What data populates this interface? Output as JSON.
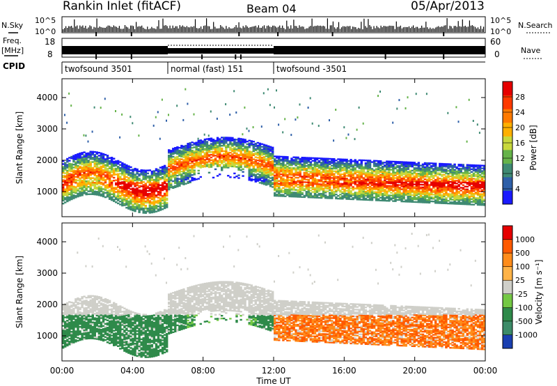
{
  "header": {
    "title": "Rankin Inlet (fitACF)",
    "beam": "Beam 04",
    "date": "05/Apr/2013"
  },
  "strips": {
    "nsky_label": "N.Sky",
    "nsearch_label": "N.Search",
    "count_ticks": [
      "10^5",
      "10^0"
    ],
    "freq_label_line1": "Freq.",
    "freq_label_line2": "[MHz]",
    "freq_ticks": [
      "18",
      "8"
    ],
    "nave_label": "Nave",
    "nave_ticks": [
      "60",
      "0"
    ],
    "cpid_label": "CPID",
    "cpid_segments": [
      {
        "label": "twofsound 3501",
        "start_ut": 0,
        "end_ut": 6
      },
      {
        "label": "normal (fast) 151",
        "start_ut": 6,
        "end_ut": 12
      },
      {
        "label": "twofsound -3501",
        "start_ut": 12,
        "end_ut": 24
      }
    ]
  },
  "chart_data": [
    {
      "type": "heatmap",
      "name": "power",
      "ylabel": "Slant Range [km]",
      "ylim": [
        200,
        4600
      ],
      "yticks": [
        "4000",
        "3000",
        "2000",
        "1000"
      ],
      "xlim": [
        0,
        24
      ],
      "colorbar_label": "Power [dB]",
      "colorbar_ticks": [
        "28",
        "24",
        "20",
        "16",
        "12",
        "8",
        "4"
      ],
      "colors": [
        "#1a1aff",
        "#2e5fa8",
        "#3f8a73",
        "#66b34a",
        "#c8d83c",
        "#ffb000",
        "#ff7a00",
        "#ff3a00",
        "#e60000"
      ]
    },
    {
      "type": "heatmap",
      "name": "velocity",
      "ylabel": "Slant Range [km]",
      "ylim": [
        200,
        4600
      ],
      "yticks": [
        "4000",
        "3000",
        "2000",
        "1000"
      ],
      "xlim": [
        0,
        24
      ],
      "xlabel": "Time UT",
      "xticks": [
        "00:00",
        "04:00",
        "08:00",
        "12:00",
        "16:00",
        "20:00",
        "00:00"
      ],
      "colorbar_label": "Velocity [m s⁻¹]",
      "colorbar_ticks": [
        "1000",
        "500",
        "100",
        "25",
        "-25",
        "-100",
        "-500",
        "-1000"
      ],
      "colors": [
        "#1a3fb0",
        "#3c8b68",
        "#2e8a4a",
        "#74c944",
        "#cfcfc9",
        "#ffb347",
        "#ff8c1a",
        "#ff5a00",
        "#e60000"
      ]
    }
  ]
}
